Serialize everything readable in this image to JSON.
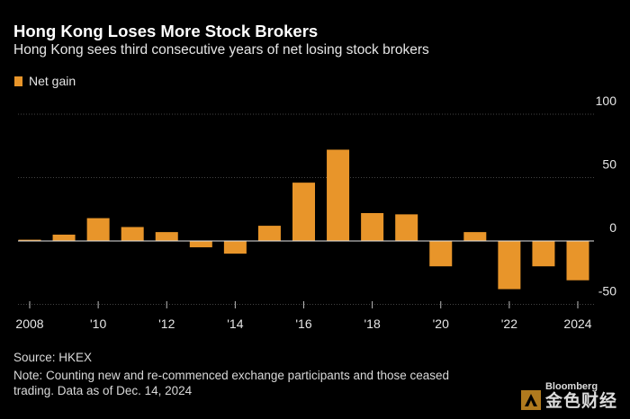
{
  "header": {
    "title": "Hong Kong Loses More Stock Brokers",
    "subtitle": "Hong Kong sees third consecutive years of net losing stock brokers"
  },
  "legend": {
    "label": "Net gain"
  },
  "footer": {
    "source": "Source: HKEX",
    "note": "Note: Counting new and re-commenced exchange participants and those ceased trading. Data as of Dec. 14, 2024"
  },
  "watermark": {
    "brand": "Bloomberg",
    "cn_text": "金色财经"
  },
  "colors": {
    "bar": "#e8952a",
    "background": "#000000",
    "grid": "#444444"
  },
  "chart_data": {
    "type": "bar",
    "title": "Hong Kong Loses More Stock Brokers",
    "subtitle": "Hong Kong sees third consecutive years of net losing stock brokers",
    "xlabel": "",
    "ylabel": "",
    "ylim": [
      -50,
      100
    ],
    "yticks": [
      100,
      50,
      0,
      -50
    ],
    "legend": "top-left",
    "grid": true,
    "categories": [
      "2008",
      "2009",
      "2010",
      "2011",
      "2012",
      "2013",
      "2014",
      "2015",
      "2016",
      "2017",
      "2018",
      "2019",
      "2020",
      "2021",
      "2022",
      "2023",
      "2024"
    ],
    "xtick_labels": [
      "2008",
      "",
      "'10",
      "",
      "'12",
      "",
      "'14",
      "",
      "'16",
      "",
      "'18",
      "",
      "'20",
      "",
      "'22",
      "",
      "2024"
    ],
    "series": [
      {
        "name": "Net gain",
        "values": [
          1,
          5,
          18,
          11,
          7,
          -5,
          -10,
          12,
          46,
          72,
          22,
          21,
          -20,
          7,
          -38,
          -20,
          -31
        ]
      }
    ]
  }
}
